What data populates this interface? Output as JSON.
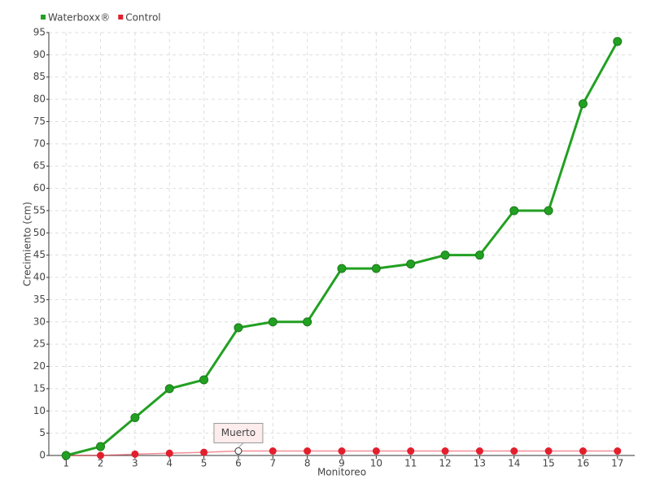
{
  "chart_data": {
    "type": "line",
    "categories": [
      "1",
      "2",
      "3",
      "4",
      "5",
      "6",
      "7",
      "8",
      "9",
      "10",
      "11",
      "12",
      "13",
      "14",
      "15",
      "16",
      "17"
    ],
    "series": [
      {
        "name": "Waterboxx®",
        "color": "#22a022",
        "values": [
          0,
          2,
          8.5,
          15,
          17,
          28.7,
          30,
          30,
          42,
          42,
          43,
          45,
          45,
          55,
          55,
          79,
          93
        ]
      },
      {
        "name": "Control",
        "color": "#e31e2d",
        "values": [
          0,
          0,
          0.3,
          0.5,
          0.7,
          1,
          1,
          1,
          1,
          1,
          1,
          1,
          1,
          1,
          1,
          1,
          1
        ]
      }
    ],
    "x_label": "Monitoreo",
    "y_label": "Crecimiento (cm)",
    "ylim": [
      0,
      95
    ],
    "yticks": [
      0,
      5,
      10,
      15,
      20,
      25,
      30,
      35,
      40,
      45,
      50,
      55,
      60,
      65,
      70,
      75,
      80,
      85,
      90,
      95
    ],
    "grid": true,
    "annotation": {
      "text": "Muerto",
      "category": "6"
    }
  }
}
